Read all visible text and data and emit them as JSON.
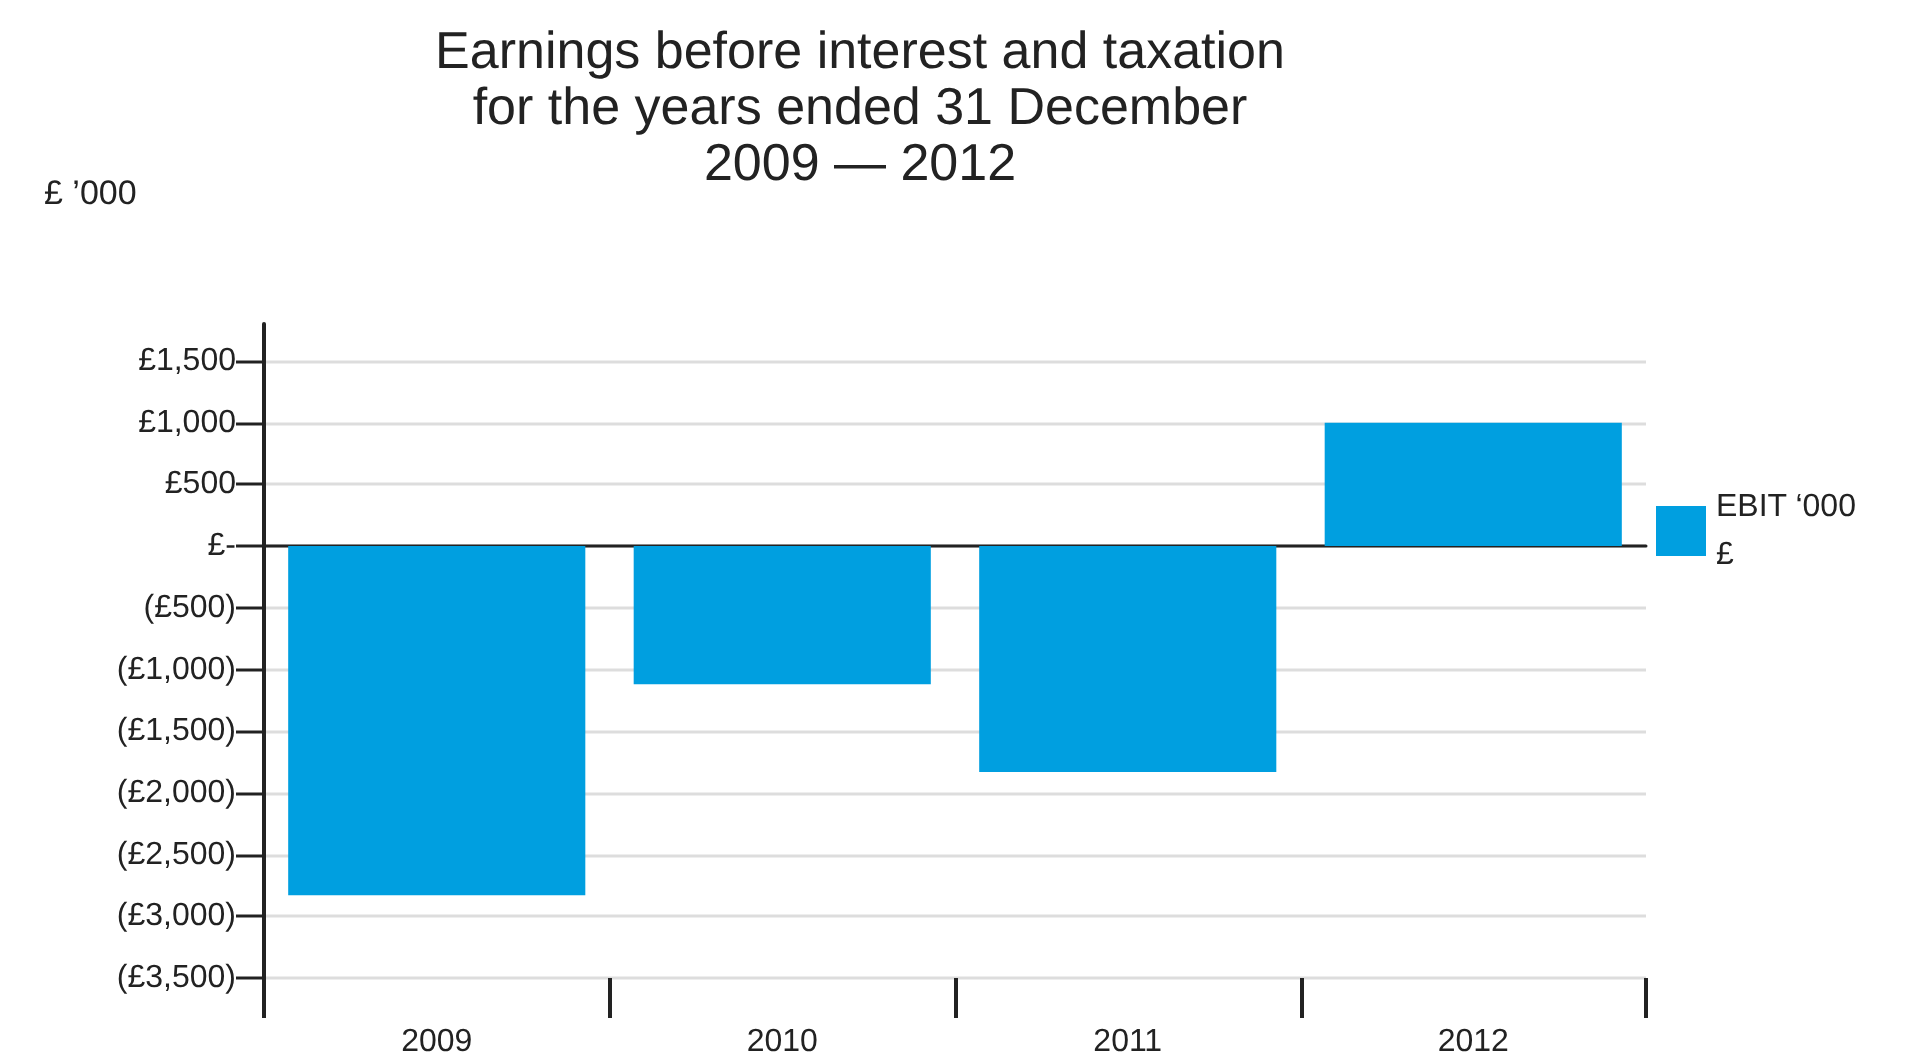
{
  "chart_data": {
    "type": "bar",
    "title": "Earnings before interest and taxation\nfor the years ended 31 December\n2009 — 2012",
    "ylabel": "£ ’000",
    "categories": [
      "2009",
      "2010",
      "2011",
      "2012"
    ],
    "series": [
      {
        "name": "EBIT ‘000 £",
        "color": "#009fe0",
        "values": [
          -2830,
          -1120,
          -1830,
          1000
        ]
      }
    ],
    "ylim": [
      -3500,
      1800
    ],
    "yticks": [
      {
        "value": -3500,
        "label": "(£3,500)"
      },
      {
        "value": -3000,
        "label": "(£3,000)"
      },
      {
        "value": -2500,
        "label": "(£2,500)"
      },
      {
        "value": -2000,
        "label": "(£2,000)"
      },
      {
        "value": -1500,
        "label": "(£1,500)"
      },
      {
        "value": -1000,
        "label": "(£1,000)"
      },
      {
        "value": -500,
        "label": "(£500)"
      },
      {
        "value": 0,
        "label": "£-"
      },
      {
        "value": 500,
        "label": "£500"
      },
      {
        "value": 1000,
        "label": "£1,000"
      },
      {
        "value": 1500,
        "label": "£1,500"
      }
    ],
    "grid": "y",
    "legend": "right"
  }
}
